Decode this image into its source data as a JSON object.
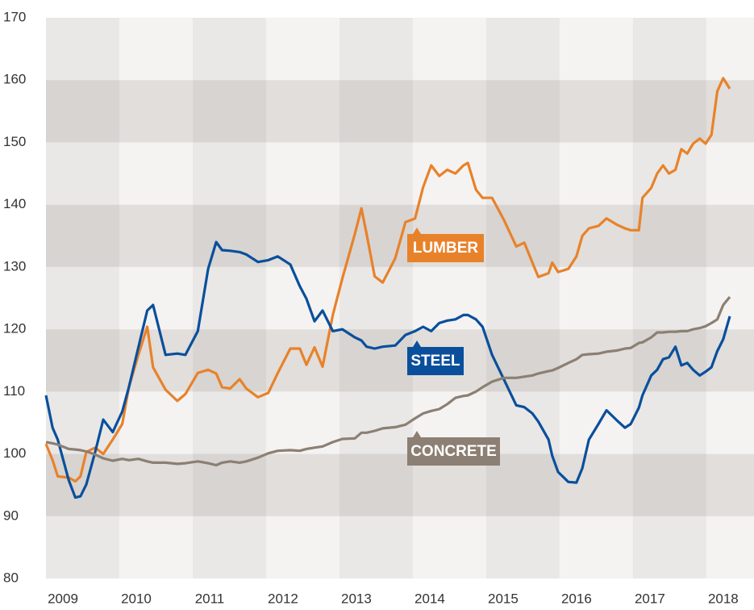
{
  "chart_data": {
    "type": "line",
    "x": [
      2009.0,
      2009.09,
      2009.16,
      2009.31,
      2009.4,
      2009.47,
      2009.55,
      2009.67,
      2009.78,
      2009.91,
      2010.04,
      2010.13,
      2010.26,
      2010.38,
      2010.46,
      2010.63,
      2010.79,
      2010.9,
      2011.07,
      2011.21,
      2011.32,
      2011.4,
      2011.51,
      2011.64,
      2011.73,
      2011.89,
      2012.03,
      2012.16,
      2012.33,
      2012.46,
      2012.55,
      2012.66,
      2012.77,
      2012.91,
      2013.04,
      2013.21,
      2013.3,
      2013.37,
      2013.48,
      2013.59,
      2013.76,
      2013.9,
      2014.03,
      2014.14,
      2014.25,
      2014.36,
      2014.47,
      2014.58,
      2014.69,
      2014.75,
      2014.86,
      2014.95,
      2015.08,
      2015.24,
      2015.41,
      2015.52,
      2015.63,
      2015.71,
      2015.85,
      2015.9,
      2015.98,
      2016.12,
      2016.23,
      2016.31,
      2016.4,
      2016.53,
      2016.64,
      2016.78,
      2016.89,
      2016.97,
      2017.08,
      2017.13,
      2017.25,
      2017.33,
      2017.41,
      2017.49,
      2017.58,
      2017.66,
      2017.74,
      2017.82,
      2017.91,
      2017.99,
      2018.07,
      2018.15,
      2018.23,
      2018.32
    ],
    "series": [
      {
        "name": "LUMBER",
        "color": "#e8822a",
        "values": [
          101.6,
          99,
          96.4,
          96.2,
          95.6,
          96.4,
          100.3,
          101,
          100,
          102.3,
          104.8,
          110.7,
          115.9,
          120.4,
          113.9,
          110.3,
          108.5,
          109.6,
          113,
          113.5,
          112.9,
          110.7,
          110.5,
          112,
          110.5,
          109.1,
          109.8,
          113,
          116.9,
          116.9,
          114.3,
          117.1,
          114,
          122.3,
          128.2,
          135.3,
          139.4,
          135.3,
          128.5,
          127.5,
          131.4,
          137.2,
          137.8,
          142.8,
          146.3,
          144.6,
          145.6,
          145,
          146.3,
          146.7,
          142.4,
          141.1,
          141.1,
          137.6,
          133.3,
          133.9,
          130.7,
          128.4,
          129,
          130.7,
          129.2,
          129.7,
          131.7,
          135,
          136.2,
          136.6,
          137.8,
          136.8,
          136.2,
          135.9,
          135.9,
          141.1,
          142.7,
          145,
          146.3,
          145,
          145.6,
          148.9,
          148.2,
          149.8,
          150.6,
          149.8,
          151.2,
          158.2,
          160.3,
          158.6
        ]
      },
      {
        "name": "STEEL",
        "color": "#0a4f9c",
        "values": [
          109.4,
          104.2,
          102.3,
          95.8,
          93,
          93.2,
          95.1,
          100.3,
          105.5,
          103.5,
          106.8,
          110.7,
          117.1,
          123,
          123.9,
          115.9,
          116.1,
          115.9,
          119.7,
          129.7,
          134,
          132.7,
          132.6,
          132.4,
          132,
          130.8,
          131.1,
          131.7,
          130.4,
          126.9,
          124.9,
          121.3,
          123,
          119.7,
          120,
          118.7,
          118.2,
          117.2,
          116.9,
          117.2,
          117.4,
          119.1,
          119.7,
          120.4,
          119.7,
          121,
          121.4,
          121.6,
          122.3,
          122.3,
          121.6,
          120.4,
          115.9,
          112,
          107.8,
          107.5,
          106.5,
          105.2,
          102.3,
          99.7,
          97.1,
          95.5,
          95.4,
          97.7,
          102.3,
          104.8,
          107,
          105.4,
          104.2,
          104.8,
          107.4,
          109.4,
          112.6,
          113.5,
          115.2,
          115.5,
          117.2,
          114.2,
          114.6,
          113.5,
          112.6,
          113.2,
          113.9,
          116.5,
          118.4,
          122.1
        ]
      },
      {
        "name": "CONCRETE",
        "color": "#8c7f73",
        "values": [
          101.9,
          101.7,
          101.5,
          100.8,
          100.7,
          100.6,
          100.4,
          99.9,
          99.3,
          98.9,
          99.2,
          99,
          99.2,
          98.8,
          98.6,
          98.6,
          98.4,
          98.5,
          98.8,
          98.5,
          98.2,
          98.6,
          98.8,
          98.6,
          98.8,
          99.4,
          100.1,
          100.5,
          100.6,
          100.5,
          100.8,
          101,
          101.2,
          101.9,
          102.4,
          102.5,
          103.4,
          103.4,
          103.7,
          104.1,
          104.3,
          104.7,
          105.7,
          106.5,
          106.9,
          107.2,
          108,
          109,
          109.3,
          109.4,
          110,
          110.7,
          111.6,
          112.2,
          112.2,
          112.4,
          112.6,
          112.9,
          113.3,
          113.4,
          113.8,
          114.6,
          115.2,
          115.9,
          116,
          116.1,
          116.4,
          116.6,
          116.9,
          117,
          117.8,
          117.9,
          118.7,
          119.5,
          119.5,
          119.6,
          119.6,
          119.7,
          119.7,
          120,
          120.2,
          120.5,
          121,
          121.6,
          123.9,
          125.2
        ]
      }
    ],
    "xlim": [
      2009,
      2018.65
    ],
    "xticks": [
      2009,
      2010,
      2011,
      2012,
      2013,
      2014,
      2015,
      2016,
      2017,
      2018
    ],
    "ylim": [
      80,
      170
    ],
    "yticks": [
      80,
      90,
      100,
      110,
      120,
      130,
      140,
      150,
      160,
      170
    ],
    "grid": true
  }
}
